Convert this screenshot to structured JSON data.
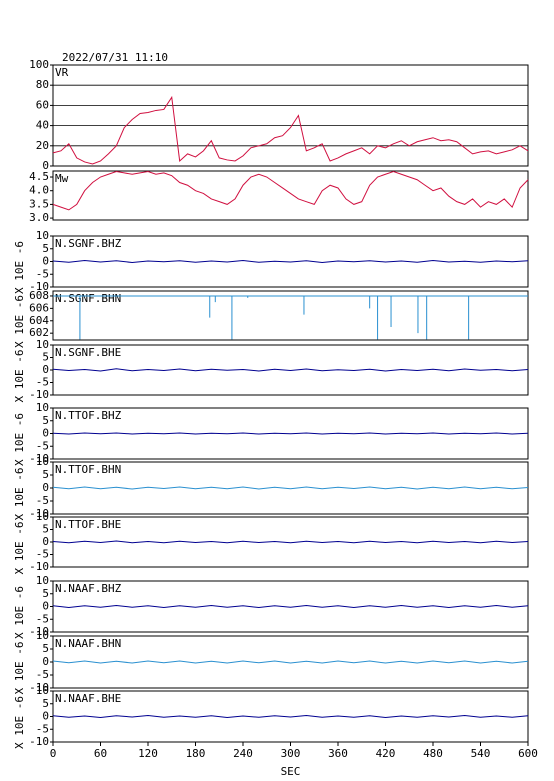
{
  "chart_data": [
    {
      "type": "line",
      "title": "2022/07/31 11:10",
      "xlim": [
        0,
        600
      ],
      "ylim": [
        0,
        100
      ],
      "yticks": [
        0,
        20,
        40,
        60,
        80,
        100
      ],
      "grid": true,
      "x": [
        0,
        10,
        20,
        30,
        40,
        50,
        60,
        70,
        80,
        90,
        100,
        110,
        120,
        130,
        140,
        150,
        160,
        170,
        180,
        190,
        200,
        210,
        220,
        230,
        240,
        250,
        260,
        270,
        280,
        290,
        300,
        310,
        320,
        330,
        340,
        350,
        360,
        370,
        380,
        390,
        400,
        410,
        420,
        430,
        440,
        450,
        460,
        470,
        480,
        490,
        500,
        510,
        520,
        530,
        540,
        550,
        560,
        570,
        580,
        590,
        600
      ],
      "series": [
        {
          "name": "VR",
          "color": "#d01040",
          "values": [
            13,
            15,
            22,
            8,
            4,
            2,
            5,
            12,
            20,
            38,
            46,
            52,
            53,
            55,
            56,
            68,
            5,
            12,
            9,
            15,
            25,
            8,
            6,
            5,
            10,
            18,
            20,
            22,
            28,
            30,
            38,
            50,
            15,
            18,
            22,
            5,
            8,
            12,
            15,
            18,
            12,
            20,
            18,
            22,
            25,
            20,
            24,
            26,
            28,
            25,
            26,
            24,
            18,
            12,
            14,
            15,
            12,
            14,
            16,
            20,
            15
          ]
        }
      ]
    },
    {
      "type": "line",
      "xlim": [
        0,
        600
      ],
      "ylim": [
        2.93,
        4.72
      ],
      "yticks": [
        {
          "value": 3,
          "label": "3.0"
        },
        3.5,
        {
          "value": 4,
          "label": "4.0"
        },
        4.5
      ],
      "grid": false,
      "x": [
        0,
        10,
        20,
        30,
        40,
        50,
        60,
        70,
        80,
        90,
        100,
        110,
        120,
        130,
        140,
        150,
        160,
        170,
        180,
        190,
        200,
        210,
        220,
        230,
        240,
        250,
        260,
        270,
        280,
        290,
        300,
        310,
        320,
        330,
        340,
        350,
        360,
        370,
        380,
        390,
        400,
        410,
        420,
        430,
        440,
        450,
        460,
        470,
        480,
        490,
        500,
        510,
        520,
        530,
        540,
        550,
        560,
        570,
        580,
        590,
        600
      ],
      "series": [
        {
          "name": "Mw",
          "color": "#d01040",
          "values": [
            3.5,
            3.4,
            3.3,
            3.5,
            4.0,
            4.3,
            4.5,
            4.6,
            4.7,
            4.65,
            4.6,
            4.65,
            4.7,
            4.6,
            4.65,
            4.55,
            4.3,
            4.2,
            4.0,
            3.9,
            3.7,
            3.6,
            3.5,
            3.7,
            4.2,
            4.5,
            4.6,
            4.5,
            4.3,
            4.1,
            3.9,
            3.7,
            3.6,
            3.5,
            4.0,
            4.2,
            4.1,
            3.7,
            3.5,
            3.6,
            4.2,
            4.5,
            4.6,
            4.7,
            4.6,
            4.5,
            4.4,
            4.2,
            4.0,
            4.1,
            3.8,
            3.6,
            3.5,
            3.7,
            3.4,
            3.6,
            3.5,
            3.7,
            3.4,
            4.1,
            4.4
          ]
        }
      ]
    },
    {
      "type": "line",
      "ylabel": "X 10E -6",
      "xlim": [
        0,
        600
      ],
      "ylim": [
        -10,
        10
      ],
      "yticks": [
        -10,
        -5,
        0,
        5,
        10
      ],
      "x": [
        0,
        20,
        40,
        60,
        80,
        100,
        120,
        140,
        160,
        180,
        200,
        220,
        240,
        260,
        280,
        300,
        320,
        340,
        360,
        380,
        400,
        420,
        440,
        460,
        480,
        500,
        520,
        540,
        560,
        580,
        600
      ],
      "series": [
        {
          "name": "N.SGNF.BHZ",
          "color": "#000090",
          "values": [
            0.2,
            -0.3,
            0.4,
            -0.2,
            0.3,
            -0.4,
            0.2,
            -0.1,
            0.3,
            -0.3,
            0.2,
            -0.2,
            0.4,
            -0.3,
            0.1,
            -0.2,
            0.3,
            -0.4,
            0.2,
            -0.1,
            0.3,
            -0.2,
            0.2,
            -0.3,
            0.4,
            -0.2,
            0.1,
            -0.3,
            0.2,
            -0.1,
            0.3
          ]
        }
      ]
    },
    {
      "type": "line",
      "ylabel": "X 10E -6",
      "xlim": [
        0,
        600
      ],
      "ylim": [
        600.9,
        608.8
      ],
      "yticks": [
        602,
        604,
        606,
        608
      ],
      "x": [
        0,
        34,
        34,
        34,
        198,
        198,
        198,
        205,
        205,
        205,
        226,
        226,
        226,
        246,
        246,
        246,
        317,
        317,
        317,
        400,
        400,
        400,
        410,
        410,
        410,
        427,
        427,
        427,
        461,
        461,
        461,
        472,
        472,
        472,
        525,
        525,
        525,
        600
      ],
      "series": [
        {
          "name": "N.SGNF.BHN",
          "color": "#2a90d0",
          "values": [
            608,
            608,
            601,
            608,
            608,
            604.5,
            608,
            608,
            607,
            608,
            608,
            601,
            608,
            608,
            607.7,
            608,
            608,
            605,
            608,
            608,
            606,
            608,
            608,
            601,
            608,
            608,
            603,
            608,
            608,
            602,
            608,
            608,
            601,
            608,
            608,
            601,
            608,
            608
          ]
        }
      ]
    },
    {
      "type": "line",
      "ylabel": "X 10E -6",
      "xlim": [
        0,
        600
      ],
      "ylim": [
        -10,
        10
      ],
      "yticks": [
        -10,
        -5,
        0,
        5,
        10
      ],
      "x": [
        0,
        20,
        40,
        60,
        80,
        100,
        120,
        140,
        160,
        180,
        200,
        220,
        240,
        260,
        280,
        300,
        320,
        340,
        360,
        380,
        400,
        420,
        440,
        460,
        480,
        500,
        520,
        540,
        560,
        580,
        600
      ],
      "series": [
        {
          "name": "N.SGNF.BHE",
          "color": "#000090",
          "values": [
            0.3,
            -0.2,
            0.2,
            -0.4,
            0.5,
            -0.3,
            0.2,
            -0.2,
            0.4,
            -0.3,
            0.3,
            -0.1,
            0.2,
            -0.4,
            0.3,
            -0.2,
            0.4,
            -0.3,
            0.1,
            -0.2,
            0.3,
            -0.4,
            0.2,
            -0.2,
            0.3,
            -0.3,
            0.4,
            -0.1,
            0.2,
            -0.3,
            0.2
          ]
        }
      ]
    },
    {
      "type": "line",
      "ylabel": "X 10E -6",
      "xlim": [
        0,
        600
      ],
      "ylim": [
        -10,
        10
      ],
      "yticks": [
        -10,
        -5,
        0,
        5,
        10
      ],
      "x": [
        0,
        20,
        40,
        60,
        80,
        100,
        120,
        140,
        160,
        180,
        200,
        220,
        240,
        260,
        280,
        300,
        320,
        340,
        360,
        380,
        400,
        420,
        440,
        460,
        480,
        500,
        520,
        540,
        560,
        580,
        600
      ],
      "series": [
        {
          "name": "N.TTOF.BHZ",
          "color": "#000090",
          "values": [
            0.1,
            -0.2,
            0.2,
            -0.1,
            0.2,
            -0.2,
            0.1,
            -0.1,
            0.2,
            -0.2,
            0.1,
            -0.1,
            0.2,
            -0.2,
            0.1,
            -0.1,
            0.2,
            -0.2,
            0.1,
            -0.1,
            0.2,
            -0.2,
            0.1,
            -0.1,
            0.2,
            -0.2,
            0.1,
            -0.1,
            0.2,
            -0.2,
            0.1
          ]
        }
      ]
    },
    {
      "type": "line",
      "ylabel": "X 10E -6",
      "xlim": [
        0,
        600
      ],
      "ylim": [
        -10,
        10
      ],
      "yticks": [
        -10,
        -5,
        0,
        5,
        10
      ],
      "x": [
        0,
        20,
        40,
        60,
        80,
        100,
        120,
        140,
        160,
        180,
        200,
        220,
        240,
        260,
        280,
        300,
        320,
        340,
        360,
        380,
        400,
        420,
        440,
        460,
        480,
        500,
        520,
        540,
        560,
        580,
        600
      ],
      "series": [
        {
          "name": "N.TTOF.BHN",
          "color": "#2a90d0",
          "values": [
            0.3,
            -0.3,
            0.4,
            -0.3,
            0.3,
            -0.4,
            0.3,
            -0.2,
            0.4,
            -0.3,
            0.3,
            -0.3,
            0.4,
            -0.4,
            0.3,
            -0.3,
            0.4,
            -0.3,
            0.3,
            -0.2,
            0.4,
            -0.3,
            0.3,
            -0.4,
            0.3,
            -0.3,
            0.4,
            -0.3,
            0.3,
            -0.3,
            0.2
          ]
        }
      ]
    },
    {
      "type": "line",
      "ylabel": "X 10E -6",
      "xlim": [
        0,
        600
      ],
      "ylim": [
        -10,
        10
      ],
      "yticks": [
        -10,
        -5,
        0,
        5,
        10
      ],
      "x": [
        0,
        20,
        40,
        60,
        80,
        100,
        120,
        140,
        160,
        180,
        200,
        220,
        240,
        260,
        280,
        300,
        320,
        340,
        360,
        380,
        400,
        420,
        440,
        460,
        480,
        500,
        520,
        540,
        560,
        580,
        600
      ],
      "series": [
        {
          "name": "N.TTOF.BHE",
          "color": "#000090",
          "values": [
            0.2,
            -0.3,
            0.3,
            -0.2,
            0.4,
            -0.3,
            0.2,
            -0.3,
            0.3,
            -0.2,
            0.2,
            -0.3,
            0.3,
            -0.2,
            0.2,
            -0.3,
            0.3,
            -0.2,
            0.2,
            -0.3,
            0.3,
            -0.2,
            0.2,
            -0.3,
            0.3,
            -0.2,
            0.2,
            -0.3,
            0.3,
            -0.2,
            0.2
          ]
        }
      ]
    },
    {
      "type": "line",
      "ylabel": "X 10E -6",
      "xlim": [
        0,
        600
      ],
      "ylim": [
        -10,
        10
      ],
      "yticks": [
        -10,
        -5,
        0,
        5,
        10
      ],
      "x": [
        0,
        20,
        40,
        60,
        80,
        100,
        120,
        140,
        160,
        180,
        200,
        220,
        240,
        260,
        280,
        300,
        320,
        340,
        360,
        380,
        400,
        420,
        440,
        460,
        480,
        500,
        520,
        540,
        560,
        580,
        600
      ],
      "series": [
        {
          "name": "N.NAAF.BHZ",
          "color": "#000090",
          "values": [
            0.3,
            -0.4,
            0.3,
            -0.3,
            0.4,
            -0.3,
            0.3,
            -0.4,
            0.3,
            -0.3,
            0.4,
            -0.3,
            0.3,
            -0.4,
            0.3,
            -0.3,
            0.4,
            -0.3,
            0.3,
            -0.4,
            0.3,
            -0.3,
            0.4,
            -0.3,
            0.3,
            -0.4,
            0.3,
            -0.3,
            0.4,
            -0.3,
            0.3
          ]
        }
      ]
    },
    {
      "type": "line",
      "ylabel": "X 10E -6",
      "xlim": [
        0,
        600
      ],
      "ylim": [
        -10,
        10
      ],
      "yticks": [
        -10,
        -5,
        0,
        5,
        10
      ],
      "x": [
        0,
        20,
        40,
        60,
        80,
        100,
        120,
        140,
        160,
        180,
        200,
        220,
        240,
        260,
        280,
        300,
        320,
        340,
        360,
        380,
        400,
        420,
        440,
        460,
        480,
        500,
        520,
        540,
        560,
        580,
        600
      ],
      "series": [
        {
          "name": "N.NAAF.BHN",
          "color": "#2a90d0",
          "values": [
            0.4,
            -0.3,
            0.4,
            -0.4,
            0.3,
            -0.4,
            0.4,
            -0.3,
            0.4,
            -0.4,
            0.3,
            -0.4,
            0.4,
            -0.3,
            0.4,
            -0.4,
            0.3,
            -0.4,
            0.4,
            -0.3,
            0.4,
            -0.4,
            0.3,
            -0.4,
            0.4,
            -0.3,
            0.4,
            -0.4,
            0.3,
            -0.4,
            0.3
          ]
        }
      ]
    },
    {
      "type": "line",
      "ylabel": "X 10E -6",
      "xlabel": "SEC",
      "xlim": [
        0,
        600
      ],
      "ylim": [
        -10,
        10
      ],
      "yticks": [
        -10,
        -5,
        0,
        5,
        10
      ],
      "xticks": [
        0,
        60,
        120,
        180,
        240,
        300,
        360,
        420,
        480,
        540,
        600
      ],
      "x": [
        0,
        20,
        40,
        60,
        80,
        100,
        120,
        140,
        160,
        180,
        200,
        220,
        240,
        260,
        280,
        300,
        320,
        340,
        360,
        380,
        400,
        420,
        440,
        460,
        480,
        500,
        520,
        540,
        560,
        580,
        600
      ],
      "series": [
        {
          "name": "N.NAAF.BHE",
          "color": "#000090",
          "values": [
            0.3,
            -0.3,
            0.2,
            -0.4,
            0.3,
            -0.2,
            0.4,
            -0.3,
            0.2,
            -0.3,
            0.3,
            -0.4,
            0.2,
            -0.3,
            0.3,
            -0.2,
            0.4,
            -0.3,
            0.2,
            -0.3,
            0.3,
            -0.4,
            0.2,
            -0.3,
            0.3,
            -0.2,
            0.4,
            -0.3,
            0.2,
            -0.3,
            0.3
          ]
        }
      ]
    }
  ]
}
